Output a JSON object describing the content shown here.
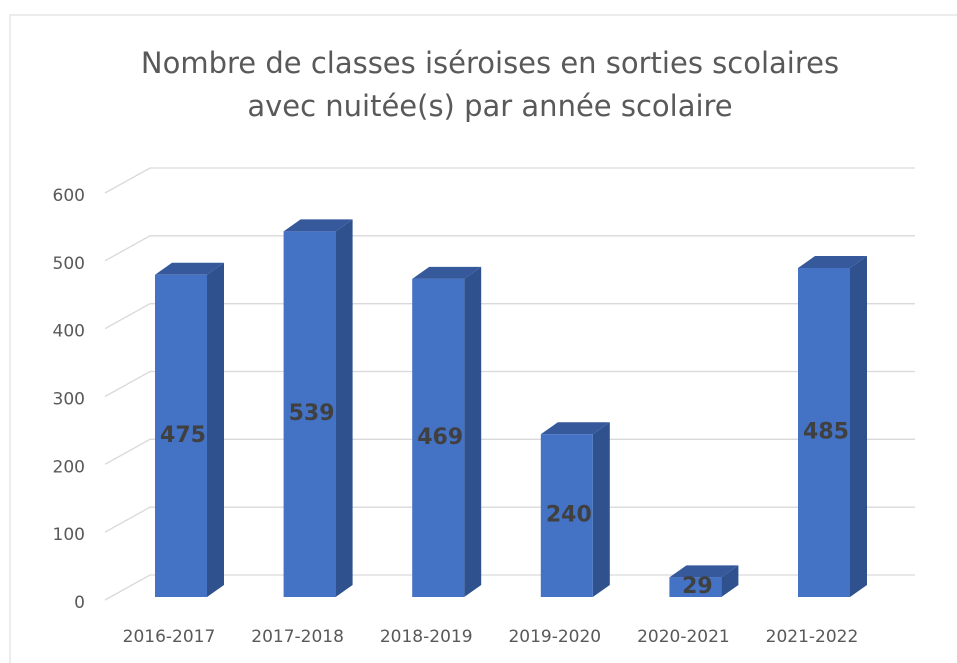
{
  "chart_data": {
    "type": "bar3d",
    "title": [
      "Nombre de classes iséroises en sorties scolaires",
      "avec nuitée(s) par année scolaire"
    ],
    "categories": [
      "2016-2017",
      "2017-2018",
      "2018-2019",
      "2019-2020",
      "2020-2021",
      "2021-2022"
    ],
    "values": [
      475,
      539,
      469,
      240,
      29,
      485
    ],
    "color": "#4472c4",
    "side_color": "#2f528f",
    "top_color": "#36599c",
    "ylim": [
      0,
      600
    ],
    "yticks": [
      0,
      100,
      200,
      300,
      400,
      500,
      600
    ],
    "grid": true
  }
}
